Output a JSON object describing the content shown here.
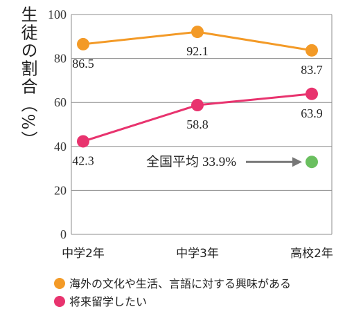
{
  "chart_data": {
    "type": "line",
    "categories": [
      "中学2年",
      "中学3年",
      "高校2年"
    ],
    "series": [
      {
        "name": "海外の文化や生活、言語に対する興味がある",
        "values": [
          86.5,
          92.1,
          83.7
        ],
        "labels": [
          "86.5",
          "92.1",
          "83.7"
        ],
        "color": "#f39a27"
      },
      {
        "name": "将来留学したい",
        "values": [
          42.3,
          58.8,
          63.9
        ],
        "labels": [
          "42.3",
          "58.8",
          "63.9"
        ],
        "color": "#e8336e"
      }
    ],
    "ylabel": "生徒の割合（%）",
    "ylim": [
      0,
      100
    ],
    "yticks": [
      "0",
      "20",
      "40",
      "60",
      "80",
      "100"
    ],
    "grid": true,
    "annotation": {
      "label": "全国平均",
      "value_text": "33.9%",
      "value": 33.9,
      "category": "高校2年",
      "color": "#6abf5f"
    },
    "legend_position": "bottom"
  }
}
